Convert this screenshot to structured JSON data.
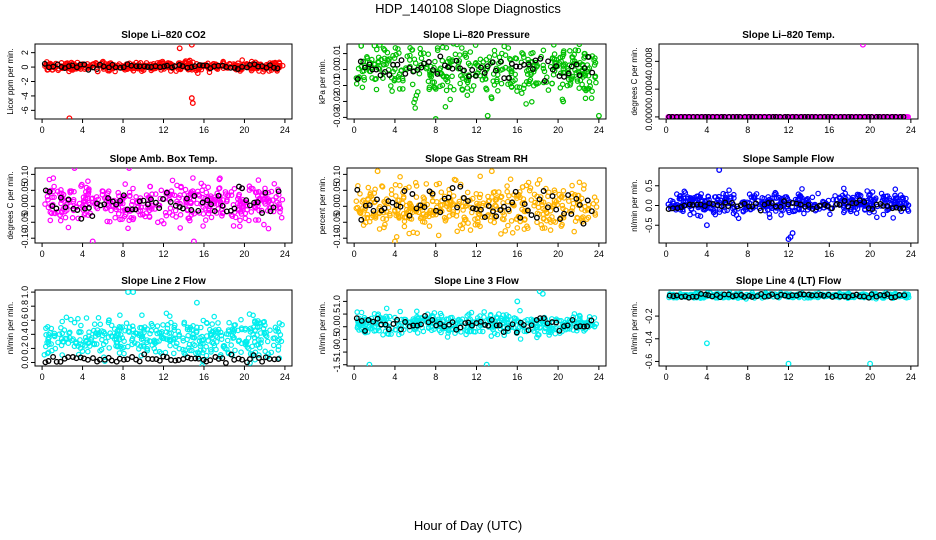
{
  "figure": {
    "title": "HDP_140108  Slope Diagnostics",
    "xlabel": "Hour of Day (UTC)"
  },
  "chart_data": [
    {
      "type": "scatter",
      "title": "Slope Li–820 CO2",
      "ylabel": "Licor ppm per min.",
      "x_ticks": [
        0,
        4,
        8,
        12,
        16,
        20,
        24
      ],
      "xlim": [
        -0.7,
        24.7
      ],
      "y_ticks": [
        2,
        0,
        -2,
        -4,
        -6
      ],
      "y_tick_labels": [
        "2",
        "0",
        "-2",
        "-4",
        "-6"
      ],
      "ylim": [
        -7.2,
        3.2
      ],
      "color": "#ff0000",
      "center": 0.1,
      "spread": 0.45,
      "black_center": 0.1,
      "black_spread": 0.25,
      "outliers": [
        [
          2.7,
          -7.1
        ],
        [
          13.6,
          2.6
        ],
        [
          14.8,
          3.1
        ],
        [
          14.8,
          -4.3
        ],
        [
          14.9,
          -5.0
        ],
        [
          14.6,
          0.9
        ],
        [
          5.5,
          -0.6
        ]
      ]
    },
    {
      "type": "scatter",
      "title": "Slope Li–820 Pressure",
      "ylabel": "kPa per min.",
      "x_ticks": [
        0,
        4,
        8,
        12,
        16,
        20,
        24
      ],
      "xlim": [
        -0.7,
        24.7
      ],
      "y_ticks": [
        0.01,
        0,
        -0.01,
        -0.02,
        -0.03
      ],
      "y_tick_labels": [
        "0.01",
        "0.00",
        "-0.01",
        "-0.02",
        "-0.03"
      ],
      "ylim": [
        -0.031,
        0.016
      ],
      "color": "#00c000",
      "center": 0.0,
      "spread": 0.012,
      "black_center": 0.0,
      "black_spread": 0.006,
      "outliers": [
        [
          8.0,
          -0.031
        ],
        [
          13.1,
          -0.029
        ],
        [
          24.0,
          -0.029
        ],
        [
          2.0,
          0.015
        ],
        [
          20.5,
          -0.02
        ]
      ]
    },
    {
      "type": "scatter",
      "title": "Slope Li–820 Temp.",
      "ylabel": "degrees C per min.",
      "x_ticks": [
        0,
        4,
        8,
        12,
        16,
        20,
        24
      ],
      "xlim": [
        -0.7,
        24.7
      ],
      "y_ticks": [
        0,
        0.0004,
        0.0008
      ],
      "y_tick_labels": [
        "0.0000",
        "0.0004",
        "0.0008"
      ],
      "ylim": [
        -3e-05,
        0.00105
      ],
      "color": "#ff00ff",
      "center": 0.0,
      "spread": 0.0,
      "black_center": 0.0,
      "black_spread": 0.0,
      "outliers": [
        [
          19.3,
          0.00104
        ]
      ]
    },
    {
      "type": "scatter",
      "title": "Slope Amb. Box Temp.",
      "ylabel": "degrees C per min.",
      "x_ticks": [
        0,
        4,
        8,
        12,
        16,
        20,
        24
      ],
      "xlim": [
        -0.7,
        24.7
      ],
      "y_ticks": [
        0.1,
        0.05,
        0,
        -0.05,
        -0.1
      ],
      "y_tick_labels": [
        "0.10",
        "0.05",
        "0.00",
        "-0.05",
        "-0.10"
      ],
      "ylim": [
        -0.115,
        0.12
      ],
      "color": "#ff00ff",
      "center": 0.01,
      "spread": 0.045,
      "black_center": 0.01,
      "black_spread": 0.03,
      "outliers": [
        [
          3.2,
          0.12
        ],
        [
          5.0,
          -0.11
        ],
        [
          8.6,
          0.12
        ],
        [
          15.0,
          -0.11
        ]
      ]
    },
    {
      "type": "scatter",
      "title": "Slope Gas Stream RH",
      "ylabel": "percent per min.",
      "x_ticks": [
        0,
        4,
        8,
        12,
        16,
        20,
        24
      ],
      "xlim": [
        -0.7,
        24.7
      ],
      "y_ticks": [
        0.1,
        0.05,
        0,
        -0.05,
        -0.1
      ],
      "y_tick_labels": [
        "0.10",
        "0.05",
        "0.00",
        "-0.05",
        "-0.10"
      ],
      "ylim": [
        -0.115,
        0.12
      ],
      "color": "#ffb300",
      "center": 0.0,
      "spread": 0.05,
      "black_center": 0.0,
      "black_spread": 0.04,
      "outliers": [
        [
          4.0,
          -0.11
        ],
        [
          2.3,
          0.11
        ],
        [
          13.5,
          0.11
        ]
      ]
    },
    {
      "type": "scatter",
      "title": "Slope Sample Flow",
      "ylabel": "nl/min per min.",
      "x_ticks": [
        0,
        4,
        8,
        12,
        16,
        20,
        24
      ],
      "xlim": [
        -0.7,
        24.7
      ],
      "y_ticks": [
        0.5,
        0,
        -0.5
      ],
      "y_tick_labels": [
        "0.5",
        "0.0",
        "-0.5"
      ],
      "ylim": [
        -0.95,
        0.95
      ],
      "color": "#0000ff",
      "center": 0.05,
      "spread": 0.2,
      "black_center": 0.0,
      "black_spread": 0.08,
      "outliers": [
        [
          5.2,
          0.9
        ],
        [
          12.0,
          -0.85
        ],
        [
          12.2,
          -0.8
        ],
        [
          12.4,
          -0.7
        ],
        [
          4.0,
          -0.5
        ]
      ]
    },
    {
      "type": "scatter",
      "title": "Slope Line 2 Flow",
      "ylabel": "nl/min per min.",
      "x_ticks": [
        0,
        4,
        8,
        12,
        16,
        20,
        24
      ],
      "xlim": [
        -0.7,
        24.7
      ],
      "y_ticks": [
        0,
        0.2,
        0.4,
        0.6,
        0.8,
        1.0
      ],
      "y_tick_labels": [
        "0.0",
        "0.2",
        "0.4",
        "0.6",
        "0.8",
        "1.0"
      ],
      "ylim": [
        -0.05,
        1.03
      ],
      "color": "#00eeee",
      "center": 0.35,
      "spread": 0.2,
      "black_center": 0.05,
      "black_spread": 0.04,
      "outliers": [
        [
          8.5,
          1.0
        ],
        [
          9.0,
          1.0
        ],
        [
          15.3,
          0.85
        ]
      ]
    },
    {
      "type": "scatter",
      "title": "Slope Line 3 Flow",
      "ylabel": "nl/min per min.",
      "x_ticks": [
        0,
        4,
        8,
        12,
        16,
        20,
        24
      ],
      "xlim": [
        -0.7,
        24.7
      ],
      "y_ticks": [
        1,
        0.5,
        0,
        -0.5,
        -1,
        -1.5
      ],
      "y_tick_labels": [
        "1.0",
        "0.5",
        "0.0",
        "-0.5",
        "-1.0",
        "-1.5"
      ],
      "ylim": [
        -1.55,
        1.45
      ],
      "color": "#00eeee",
      "center": 0.1,
      "spread": 0.3,
      "black_center": 0.1,
      "black_spread": 0.2,
      "outliers": [
        [
          16.0,
          1.0
        ],
        [
          18.2,
          1.4
        ],
        [
          18.5,
          1.3
        ],
        [
          1.5,
          -1.5
        ],
        [
          13.0,
          -1.5
        ]
      ]
    },
    {
      "type": "scatter",
      "title": "Slope Line 4 (LT) Flow",
      "ylabel": "nl/min per min.",
      "x_ticks": [
        0,
        4,
        8,
        12,
        16,
        20,
        24
      ],
      "xlim": [
        -0.7,
        24.7
      ],
      "y_ticks": [
        -0.2,
        -0.4,
        -0.6
      ],
      "y_tick_labels": [
        "-0.2",
        "-0.4",
        "-0.6"
      ],
      "ylim": [
        -0.64,
        0.03
      ],
      "color": "#00eeee",
      "center": -0.02,
      "spread": 0.015,
      "black_center": -0.02,
      "black_spread": 0.012,
      "outliers": [
        [
          4.0,
          -0.44
        ],
        [
          12.0,
          -0.62
        ],
        [
          20.0,
          -0.62
        ]
      ]
    }
  ]
}
